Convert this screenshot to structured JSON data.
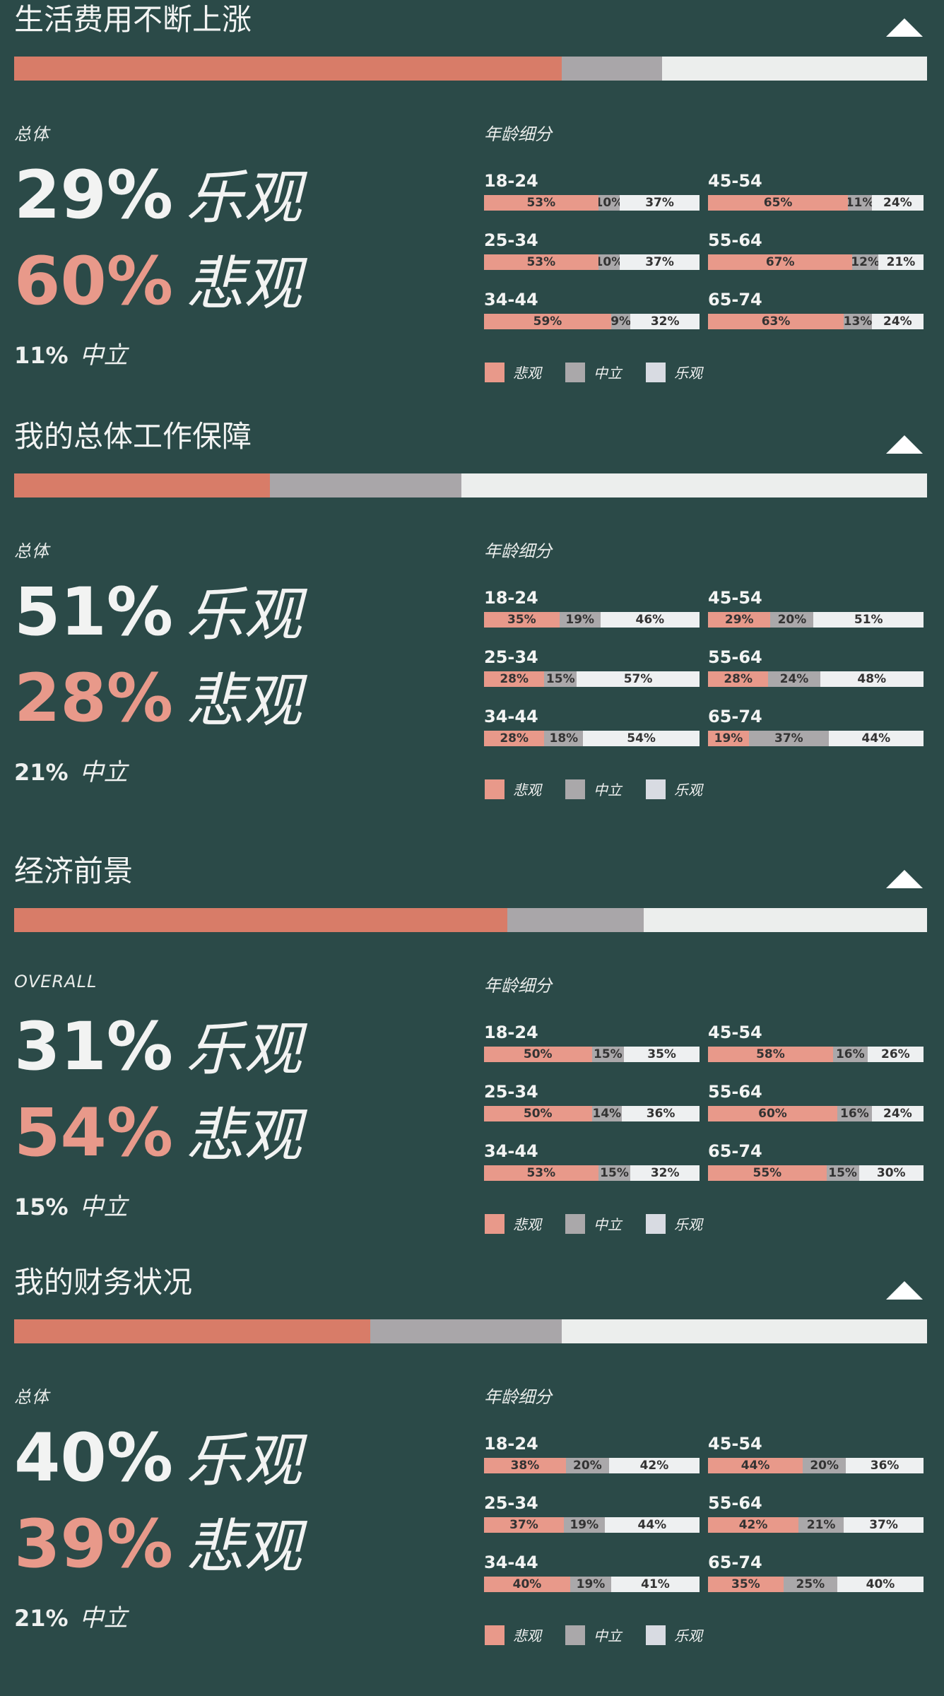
{
  "colors": {
    "background": "#2b4a48",
    "pessimistic_main": "#d87c68",
    "neutral_main": "#a9a6a9",
    "optimistic_main": "#eceeed",
    "pessimistic_age": "#e8998a",
    "neutral_age": "#aaa8aa",
    "optimistic_age": "#eef0f1",
    "legend_optimistic": "#d8dbe2"
  },
  "legend": {
    "pessimistic": "悲观",
    "neutral": "中立",
    "optimistic": "乐观"
  },
  "labels": {
    "optimistic_word": "乐观",
    "pessimistic_word": "悲观",
    "neutral_word": "中立",
    "age_breakdown": "年龄细分"
  },
  "sections": [
    {
      "title": "生活费用不断上涨",
      "overall_label": "总体",
      "collapse_icon": "triangle-up-icon",
      "overall": {
        "pessimistic": 60,
        "neutral": 11,
        "optimistic": 29
      },
      "overall_text": {
        "optimistic": "29%",
        "pessimistic": "60%",
        "neutral": "11%"
      },
      "ages": [
        {
          "label": "18-24",
          "p": 53,
          "n": 10,
          "o": 37
        },
        {
          "label": "45-54",
          "p": 65,
          "n": 11,
          "o": 24
        },
        {
          "label": "25-34",
          "p": 53,
          "n": 10,
          "o": 37
        },
        {
          "label": "55-64",
          "p": 67,
          "n": 12,
          "o": 21
        },
        {
          "label": "34-44",
          "p": 59,
          "n": 9,
          "o": 32
        },
        {
          "label": "65-74",
          "p": 63,
          "n": 13,
          "o": 24
        }
      ]
    },
    {
      "title": "我的总体工作保障",
      "overall_label": "总体",
      "collapse_icon": "triangle-up-icon",
      "overall": {
        "pessimistic": 28,
        "neutral": 21,
        "optimistic": 51
      },
      "overall_text": {
        "optimistic": "51%",
        "pessimistic": "28%",
        "neutral": "21%"
      },
      "ages": [
        {
          "label": "18-24",
          "p": 35,
          "n": 19,
          "o": 46
        },
        {
          "label": "45-54",
          "p": 29,
          "n": 20,
          "o": 51
        },
        {
          "label": "25-34",
          "p": 28,
          "n": 15,
          "o": 57
        },
        {
          "label": "55-64",
          "p": 28,
          "n": 24,
          "o": 48
        },
        {
          "label": "34-44",
          "p": 28,
          "n": 18,
          "o": 54
        },
        {
          "label": "65-74",
          "p": 19,
          "n": 37,
          "o": 44
        }
      ]
    },
    {
      "title": "经济前景",
      "overall_label": "OVERALL",
      "collapse_icon": "triangle-up-icon",
      "overall": {
        "pessimistic": 54,
        "neutral": 15,
        "optimistic": 31
      },
      "overall_text": {
        "optimistic": "31%",
        "pessimistic": "54%",
        "neutral": "15%"
      },
      "ages": [
        {
          "label": "18-24",
          "p": 50,
          "n": 15,
          "o": 35
        },
        {
          "label": "45-54",
          "p": 58,
          "n": 16,
          "o": 26
        },
        {
          "label": "25-34",
          "p": 50,
          "n": 14,
          "o": 36
        },
        {
          "label": "55-64",
          "p": 60,
          "n": 16,
          "o": 24
        },
        {
          "label": "34-44",
          "p": 53,
          "n": 15,
          "o": 32
        },
        {
          "label": "65-74",
          "p": 55,
          "n": 15,
          "o": 30
        }
      ]
    },
    {
      "title": "我的财务状况",
      "overall_label": "总体",
      "collapse_icon": "triangle-up-icon",
      "overall": {
        "pessimistic": 39,
        "neutral": 21,
        "optimistic": 40
      },
      "overall_text": {
        "optimistic": "40%",
        "pessimistic": "39%",
        "neutral": "21%"
      },
      "ages": [
        {
          "label": "18-24",
          "p": 38,
          "n": 20,
          "o": 42
        },
        {
          "label": "45-54",
          "p": 44,
          "n": 20,
          "o": 36
        },
        {
          "label": "25-34",
          "p": 37,
          "n": 19,
          "o": 44
        },
        {
          "label": "55-64",
          "p": 42,
          "n": 21,
          "o": 37
        },
        {
          "label": "34-44",
          "p": 40,
          "n": 19,
          "o": 41
        },
        {
          "label": "65-74",
          "p": 35,
          "n": 25,
          "o": 40
        }
      ]
    }
  ],
  "chart_data": [
    {
      "type": "bar",
      "title": "生活费用不断上涨",
      "categories": [
        "总体",
        "18-24",
        "25-34",
        "34-44",
        "45-54",
        "55-64",
        "65-74"
      ],
      "series": [
        {
          "name": "悲观",
          "values": [
            60,
            53,
            53,
            59,
            65,
            67,
            63
          ]
        },
        {
          "name": "中立",
          "values": [
            11,
            10,
            10,
            9,
            11,
            12,
            13
          ]
        },
        {
          "name": "乐观",
          "values": [
            29,
            37,
            37,
            32,
            24,
            21,
            24
          ]
        }
      ]
    },
    {
      "type": "bar",
      "title": "我的总体工作保障",
      "categories": [
        "总体",
        "18-24",
        "25-34",
        "34-44",
        "45-54",
        "55-64",
        "65-74"
      ],
      "series": [
        {
          "name": "悲观",
          "values": [
            28,
            35,
            28,
            28,
            29,
            28,
            19
          ]
        },
        {
          "name": "中立",
          "values": [
            21,
            19,
            15,
            18,
            20,
            24,
            37
          ]
        },
        {
          "name": "乐观",
          "values": [
            51,
            46,
            57,
            54,
            51,
            48,
            44
          ]
        }
      ]
    },
    {
      "type": "bar",
      "title": "经济前景",
      "categories": [
        "OVERALL",
        "18-24",
        "25-34",
        "34-44",
        "45-54",
        "55-64",
        "65-74"
      ],
      "series": [
        {
          "name": "悲观",
          "values": [
            54,
            50,
            50,
            53,
            58,
            60,
            55
          ]
        },
        {
          "name": "中立",
          "values": [
            15,
            15,
            14,
            15,
            16,
            16,
            15
          ]
        },
        {
          "name": "乐观",
          "values": [
            31,
            35,
            36,
            32,
            26,
            24,
            30
          ]
        }
      ]
    },
    {
      "type": "bar",
      "title": "我的财务状况",
      "categories": [
        "总体",
        "18-24",
        "25-34",
        "34-44",
        "45-54",
        "55-64",
        "65-74"
      ],
      "series": [
        {
          "name": "悲观",
          "values": [
            39,
            38,
            37,
            40,
            44,
            42,
            35
          ]
        },
        {
          "name": "中立",
          "values": [
            21,
            20,
            19,
            19,
            20,
            21,
            25
          ]
        },
        {
          "name": "乐观",
          "values": [
            40,
            42,
            44,
            41,
            36,
            37,
            40
          ]
        }
      ]
    }
  ]
}
